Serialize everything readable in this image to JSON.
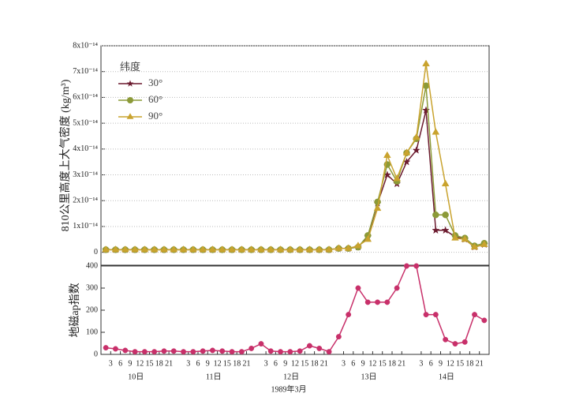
{
  "chart_data": [
    {
      "type": "line",
      "ylabel": "810公里高度上大气密度 (kg/m³)",
      "legend_title": "纬度",
      "legend": "upper left",
      "grid": true,
      "xlim": [
        0,
        120
      ],
      "ylim": [
        -0.5,
        8
      ],
      "yticks": [
        0,
        {
          "value": 1,
          "label": "1x10⁻¹⁴"
        },
        {
          "value": 2,
          "label": "2x10⁻¹⁴"
        },
        {
          "value": 3,
          "label": "3x10⁻¹⁴"
        },
        {
          "value": 4,
          "label": "4x10⁻¹⁴"
        },
        {
          "value": 5,
          "label": "5x10⁻¹⁴"
        },
        {
          "value": 6,
          "label": "6x10⁻¹⁴"
        },
        {
          "value": 7,
          "label": "7x10⁻¹⁴"
        },
        {
          "value": 8,
          "label": "8x10⁻¹⁴"
        }
      ],
      "x": [
        1.5,
        4.5,
        7.5,
        10.5,
        13.5,
        16.5,
        19.5,
        22.5,
        25.5,
        28.5,
        31.5,
        34.5,
        37.5,
        40.5,
        43.5,
        46.5,
        49.5,
        52.5,
        55.5,
        58.5,
        61.5,
        64.5,
        67.5,
        70.5,
        73.5,
        76.5,
        79.5,
        82.5,
        85.5,
        88.5,
        91.5,
        94.5,
        97.5,
        100.5,
        103.5,
        106.5,
        109.5,
        112.5,
        115.5,
        118.5
      ],
      "series": [
        {
          "name": "30°",
          "color": "#6b1a2e",
          "marker": "star",
          "values": [
            0.1,
            0.1,
            0.1,
            0.1,
            0.1,
            0.1,
            0.1,
            0.1,
            0.1,
            0.1,
            0.1,
            0.1,
            0.1,
            0.1,
            0.1,
            0.1,
            0.1,
            0.1,
            0.1,
            0.1,
            0.1,
            0.1,
            0.1,
            0.1,
            0.15,
            0.15,
            0.2,
            0.6,
            1.9,
            3.0,
            2.65,
            3.5,
            3.95,
            5.5,
            0.85,
            0.85,
            0.6,
            0.5,
            0.2,
            0.3
          ]
        },
        {
          "name": "60°",
          "color": "#8c9a38",
          "marker": "circle",
          "values": [
            0.1,
            0.1,
            0.1,
            0.1,
            0.1,
            0.1,
            0.1,
            0.1,
            0.1,
            0.1,
            0.1,
            0.1,
            0.1,
            0.1,
            0.1,
            0.1,
            0.1,
            0.1,
            0.1,
            0.1,
            0.1,
            0.1,
            0.1,
            0.1,
            0.15,
            0.15,
            0.2,
            0.65,
            1.95,
            3.4,
            2.75,
            3.85,
            4.4,
            6.45,
            1.45,
            1.45,
            0.65,
            0.55,
            0.25,
            0.35
          ]
        },
        {
          "name": "90°",
          "color": "#c9a32e",
          "marker": "triangle",
          "values": [
            0.1,
            0.1,
            0.1,
            0.1,
            0.1,
            0.1,
            0.1,
            0.1,
            0.1,
            0.1,
            0.1,
            0.1,
            0.1,
            0.1,
            0.1,
            0.1,
            0.1,
            0.1,
            0.1,
            0.1,
            0.1,
            0.1,
            0.1,
            0.1,
            0.15,
            0.15,
            0.25,
            0.5,
            1.7,
            3.75,
            2.85,
            3.85,
            4.45,
            7.3,
            4.65,
            2.65,
            0.55,
            0.5,
            0.2,
            0.3
          ]
        }
      ]
    },
    {
      "type": "line",
      "ylabel": "地磁ap指数",
      "xlabel": "1989年3月",
      "day_labels": [
        "10日",
        "11日",
        "12日",
        "13日",
        "14日"
      ],
      "xlim": [
        0,
        120
      ],
      "ylim": [
        0,
        400
      ],
      "yticks": [
        0,
        100,
        200,
        300,
        400
      ],
      "xticks": [
        3,
        6,
        9,
        12,
        15,
        18,
        21,
        {
          "value": 27,
          "label": "3"
        },
        {
          "value": 30,
          "label": "6"
        },
        {
          "value": 33,
          "label": "9"
        },
        {
          "value": 36,
          "label": "12"
        },
        {
          "value": 39,
          "label": "15"
        },
        {
          "value": 42,
          "label": "18"
        },
        {
          "value": 45,
          "label": "21"
        },
        {
          "value": 51,
          "label": "3"
        },
        {
          "value": 54,
          "label": "6"
        },
        {
          "value": 57,
          "label": "9"
        },
        {
          "value": 60,
          "label": "12"
        },
        {
          "value": 63,
          "label": "15"
        },
        {
          "value": 66,
          "label": "18"
        },
        {
          "value": 69,
          "label": "21"
        },
        {
          "value": 75,
          "label": "3"
        },
        {
          "value": 78,
          "label": "6"
        },
        {
          "value": 81,
          "label": "9"
        },
        {
          "value": 84,
          "label": "12"
        },
        {
          "value": 87,
          "label": "15"
        },
        {
          "value": 90,
          "label": "18"
        },
        {
          "value": 93,
          "label": "21"
        },
        {
          "value": 99,
          "label": "3"
        },
        {
          "value": 102,
          "label": "6"
        },
        {
          "value": 105,
          "label": "9"
        },
        {
          "value": 108,
          "label": "12"
        },
        {
          "value": 111,
          "label": "15"
        },
        {
          "value": 114,
          "label": "18"
        },
        {
          "value": 117,
          "label": "21"
        }
      ],
      "x": [
        1.5,
        4.5,
        7.5,
        10.5,
        13.5,
        16.5,
        19.5,
        22.5,
        25.5,
        28.5,
        31.5,
        34.5,
        37.5,
        40.5,
        43.5,
        46.5,
        49.5,
        52.5,
        55.5,
        58.5,
        61.5,
        64.5,
        67.5,
        70.5,
        73.5,
        76.5,
        79.5,
        82.5,
        85.5,
        88.5,
        91.5,
        94.5,
        97.5,
        100.5,
        103.5,
        106.5,
        109.5,
        112.5,
        115.5,
        118.5
      ],
      "series": [
        {
          "color": "#c8306a",
          "marker": "circle",
          "values": [
            30,
            25,
            18,
            12,
            12,
            12,
            15,
            15,
            12,
            12,
            15,
            18,
            15,
            12,
            12,
            27,
            48,
            15,
            12,
            12,
            15,
            39,
            27,
            12,
            80,
            180,
            300,
            236,
            236,
            236,
            300,
            400,
            400,
            180,
            180,
            67,
            48,
            56,
            180,
            154
          ]
        }
      ]
    }
  ]
}
